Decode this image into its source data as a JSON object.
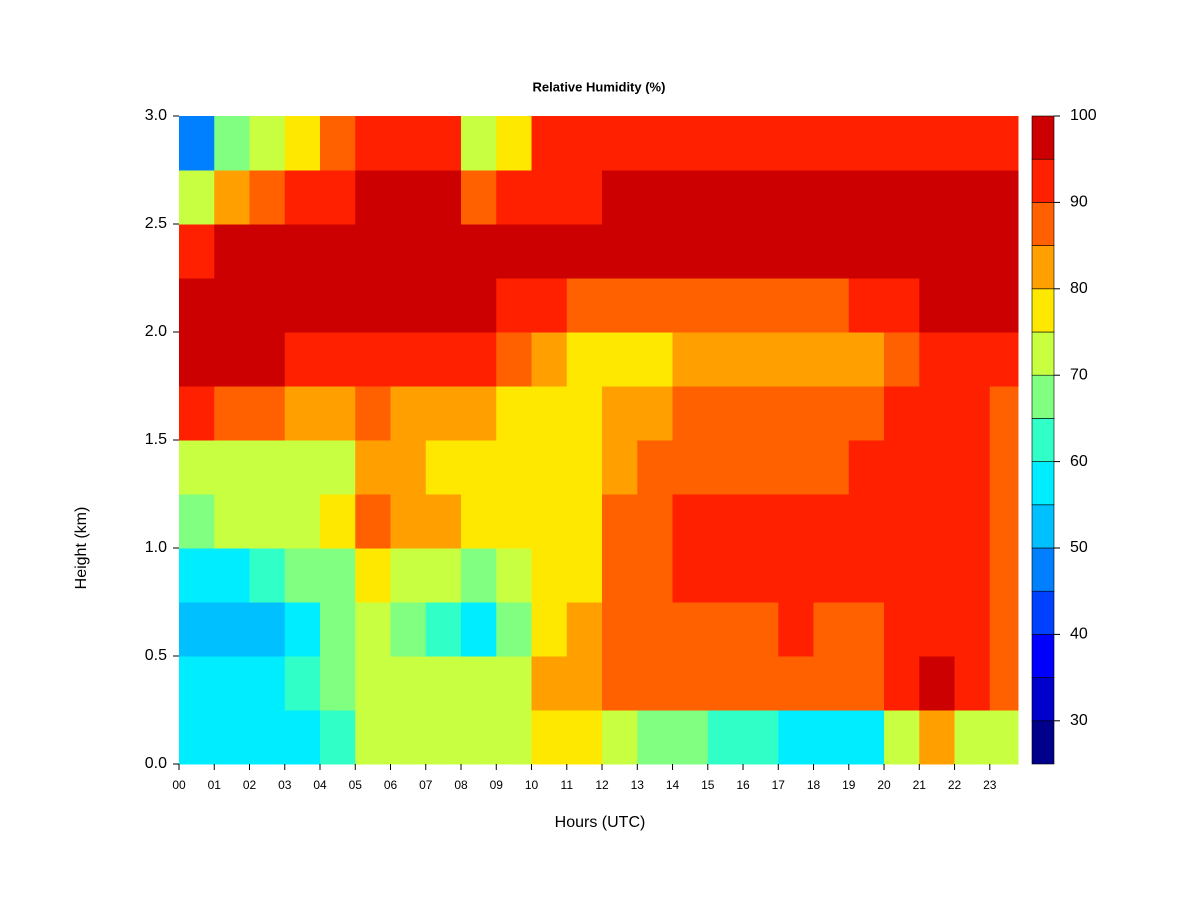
{
  "chart_data": {
    "type": "heatmap",
    "title": "Relative Humidity (%)",
    "xlabel": "Hours (UTC)",
    "ylabel": "Height (km)",
    "x_bins": [
      0,
      1,
      2,
      3,
      4,
      5,
      6,
      7,
      8,
      9,
      10,
      11,
      12,
      13,
      14,
      15,
      16,
      17,
      18,
      19,
      20,
      21,
      22,
      23,
      23.8
    ],
    "y_bins": [
      0,
      0.25,
      0.5,
      0.75,
      1,
      1.25,
      1.5,
      1.75,
      2,
      2.25,
      2.5,
      2.75,
      3
    ],
    "z": [
      [
        55,
        55,
        55,
        55,
        62,
        72,
        72,
        72,
        72,
        72,
        78,
        75,
        72,
        68,
        65,
        62,
        60,
        58,
        55,
        58,
        70,
        80,
        72,
        70
      ],
      [
        55,
        55,
        58,
        60,
        65,
        72,
        72,
        70,
        70,
        72,
        82,
        82,
        85,
        85,
        88,
        88,
        88,
        88,
        88,
        88,
        92,
        95,
        92,
        88
      ],
      [
        52,
        52,
        52,
        55,
        65,
        72,
        68,
        62,
        58,
        68,
        75,
        80,
        85,
        88,
        88,
        88,
        88,
        90,
        88,
        88,
        90,
        92,
        90,
        85
      ],
      [
        58,
        58,
        60,
        65,
        68,
        78,
        72,
        70,
        68,
        72,
        75,
        78,
        85,
        88,
        90,
        90,
        90,
        90,
        90,
        90,
        92,
        92,
        90,
        88
      ],
      [
        68,
        70,
        72,
        72,
        75,
        85,
        80,
        80,
        75,
        75,
        75,
        78,
        85,
        88,
        92,
        92,
        92,
        92,
        92,
        92,
        92,
        92,
        92,
        88
      ],
      [
        72,
        72,
        72,
        72,
        72,
        80,
        80,
        78,
        78,
        75,
        75,
        78,
        82,
        85,
        88,
        88,
        88,
        88,
        88,
        90,
        92,
        90,
        90,
        88
      ],
      [
        92,
        88,
        85,
        82,
        82,
        85,
        82,
        80,
        80,
        78,
        75,
        78,
        80,
        82,
        88,
        88,
        88,
        88,
        88,
        88,
        90,
        90,
        90,
        88
      ],
      [
        96,
        95,
        95,
        92,
        90,
        90,
        90,
        90,
        90,
        85,
        80,
        78,
        78,
        78,
        80,
        80,
        80,
        80,
        80,
        82,
        88,
        90,
        92,
        92
      ],
      [
        97,
        97,
        97,
        97,
        97,
        97,
        97,
        97,
        97,
        92,
        90,
        88,
        88,
        88,
        88,
        88,
        88,
        88,
        88,
        90,
        92,
        95,
        97,
        97
      ],
      [
        92,
        97,
        97,
        97,
        97,
        97,
        97,
        97,
        97,
        97,
        97,
        97,
        97,
        97,
        97,
        97,
        97,
        97,
        97,
        97,
        97,
        97,
        97,
        97
      ],
      [
        70,
        80,
        85,
        90,
        92,
        97,
        97,
        96,
        85,
        92,
        92,
        92,
        95,
        95,
        95,
        95,
        95,
        96,
        96,
        96,
        96,
        96,
        96,
        96
      ],
      [
        45,
        65,
        72,
        78,
        85,
        92,
        92,
        90,
        72,
        75,
        90,
        90,
        92,
        92,
        92,
        92,
        92,
        92,
        92,
        92,
        92,
        92,
        92,
        92
      ]
    ],
    "xlim": [
      0,
      23.8
    ],
    "ylim": [
      0,
      3
    ],
    "xticks": [
      {
        "value": 0,
        "label": "00"
      },
      {
        "value": 1,
        "label": "01"
      },
      {
        "value": 2,
        "label": "02"
      },
      {
        "value": 3,
        "label": "03"
      },
      {
        "value": 4,
        "label": "04"
      },
      {
        "value": 5,
        "label": "05"
      },
      {
        "value": 6,
        "label": "06"
      },
      {
        "value": 7,
        "label": "07"
      },
      {
        "value": 8,
        "label": "08"
      },
      {
        "value": 9,
        "label": "09"
      },
      10,
      11,
      12,
      13,
      14,
      15,
      16,
      17,
      18,
      19,
      20,
      21,
      22,
      23
    ],
    "yticks": [
      {
        "value": 0,
        "label": "0.0"
      },
      0.5,
      {
        "value": 1,
        "label": "1.0"
      },
      1.5,
      {
        "value": 2,
        "label": "2.0"
      },
      2.5,
      {
        "value": 3,
        "label": "3.0"
      }
    ],
    "levels": [
      25,
      30,
      35,
      40,
      45,
      50,
      55,
      60,
      65,
      70,
      75,
      80,
      85,
      90,
      95,
      100
    ],
    "colors": [
      "#00008b",
      "#0000cd",
      "#0000ff",
      "#0040ff",
      "#0080ff",
      "#00c0ff",
      "#00ecff",
      "#30ffc8",
      "#80ff80",
      "#c8ff40",
      "#ffe800",
      "#ffa000",
      "#ff6000",
      "#ff2000",
      "#cc0000",
      "#800000"
    ],
    "colorbar_ticks": [
      30,
      40,
      50,
      60,
      70,
      80,
      90,
      100
    ]
  }
}
